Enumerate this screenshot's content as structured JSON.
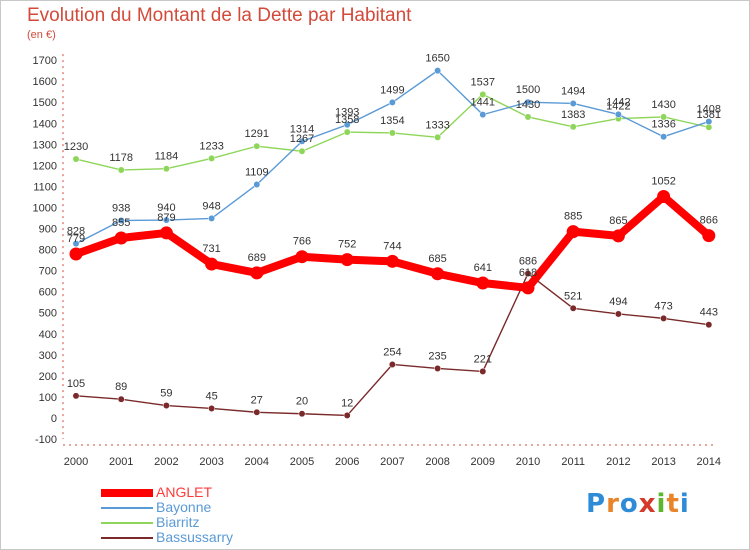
{
  "title": "Evolution du Montant de la Dette par Habitant",
  "unit_label": "(en €)",
  "logo": {
    "text": "Proxiti",
    "colors": [
      "#2e8bd8",
      "#e8842a",
      "#2e8bd8",
      "#d33a2a",
      "#5ab72e",
      "#e8842a",
      "#2e8bd8"
    ]
  },
  "chart_data": {
    "type": "line",
    "title": "Evolution du Montant de la Dette par Habitant",
    "ylabel": "(en €)",
    "xlabel": "",
    "x": [
      "2000",
      "2001",
      "2002",
      "2003",
      "2004",
      "2005",
      "2006",
      "2007",
      "2008",
      "2009",
      "2010",
      "2011",
      "2012",
      "2013",
      "2014"
    ],
    "ylim": [
      -100,
      1700
    ],
    "yticks": [
      -100,
      0,
      100,
      200,
      300,
      400,
      500,
      600,
      700,
      800,
      900,
      1000,
      1100,
      1200,
      1300,
      1400,
      1500,
      1600,
      1700
    ],
    "grid": false,
    "legend": "bottom-left",
    "series": [
      {
        "name": "Bassussarry",
        "color": "#7a2a2a",
        "values": [
          105,
          89,
          59,
          45,
          27,
          20,
          12,
          254,
          235,
          221,
          686,
          521,
          494,
          473,
          443
        ]
      },
      {
        "name": "Biarritz",
        "color": "#8ed65a",
        "values": [
          1230,
          1178,
          1184,
          1233,
          1291,
          1267,
          1358,
          1354,
          1333,
          1537,
          1430,
          1383,
          1422,
          1430,
          1381
        ]
      },
      {
        "name": "Bayonne",
        "color": "#5a9ad6",
        "values": [
          828,
          938,
          940,
          948,
          1109,
          1314,
          1393,
          1499,
          1650,
          1441,
          1500,
          1494,
          1442,
          1336,
          1408
        ]
      },
      {
        "name": "ANGLET",
        "color": "#ff0000",
        "values": [
          779,
          855,
          879,
          731,
          689,
          766,
          752,
          744,
          685,
          641,
          618,
          885,
          865,
          1052,
          866
        ]
      }
    ]
  }
}
